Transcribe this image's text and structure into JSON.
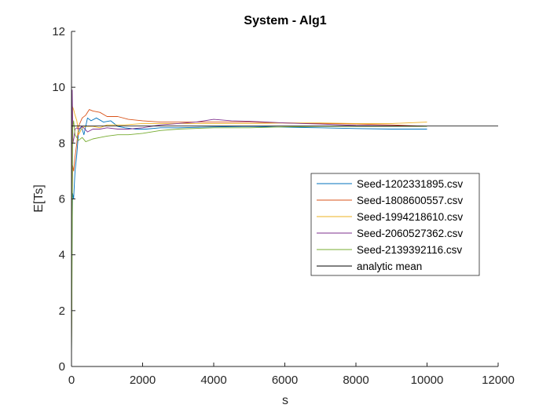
{
  "chart_data": {
    "type": "line",
    "title": "System - Alg1",
    "xlabel": "s",
    "ylabel": "E[Ts]",
    "xlim": [
      0,
      12000
    ],
    "ylim": [
      0,
      12
    ],
    "xticks": [
      0,
      2000,
      4000,
      6000,
      8000,
      10000,
      12000
    ],
    "yticks": [
      0,
      2,
      4,
      6,
      8,
      10,
      12
    ],
    "xtick_labels": [
      "0",
      "2000",
      "4000",
      "6000",
      "8000",
      "10000",
      "12000"
    ],
    "ytick_labels": [
      "0",
      "2",
      "4",
      "6",
      "8",
      "10",
      "12"
    ],
    "grid": false,
    "legend_position": "right",
    "series": [
      {
        "name": "Seed-1202331895.csv",
        "color": "#0072BD",
        "points": [
          [
            1,
            0.2
          ],
          [
            15,
            4.5
          ],
          [
            30,
            6.2
          ],
          [
            60,
            6.0
          ],
          [
            100,
            7.0
          ],
          [
            150,
            7.6
          ],
          [
            200,
            8.4
          ],
          [
            280,
            8.6
          ],
          [
            350,
            8.3
          ],
          [
            450,
            8.9
          ],
          [
            550,
            8.8
          ],
          [
            700,
            8.9
          ],
          [
            900,
            8.75
          ],
          [
            1100,
            8.8
          ],
          [
            1300,
            8.6
          ],
          [
            1500,
            8.55
          ],
          [
            1800,
            8.5
          ],
          [
            2100,
            8.5
          ],
          [
            2500,
            8.55
          ],
          [
            3000,
            8.55
          ],
          [
            4000,
            8.58
          ],
          [
            5000,
            8.6
          ],
          [
            6000,
            8.57
          ],
          [
            7000,
            8.55
          ],
          [
            8000,
            8.52
          ],
          [
            9000,
            8.5
          ],
          [
            10000,
            8.5
          ]
        ]
      },
      {
        "name": "Seed-1808600557.csv",
        "color": "#D95319",
        "points": [
          [
            1,
            0.3
          ],
          [
            15,
            5.5
          ],
          [
            30,
            7.2
          ],
          [
            60,
            7.0
          ],
          [
            100,
            7.5
          ],
          [
            150,
            8.0
          ],
          [
            200,
            8.6
          ],
          [
            300,
            8.9
          ],
          [
            400,
            9.0
          ],
          [
            500,
            9.2
          ],
          [
            600,
            9.15
          ],
          [
            800,
            9.1
          ],
          [
            1000,
            8.95
          ],
          [
            1300,
            8.95
          ],
          [
            1600,
            8.85
          ],
          [
            2000,
            8.8
          ],
          [
            2500,
            8.75
          ],
          [
            3000,
            8.75
          ],
          [
            4000,
            8.75
          ],
          [
            5000,
            8.75
          ],
          [
            6000,
            8.72
          ],
          [
            7000,
            8.7
          ],
          [
            8000,
            8.68
          ],
          [
            9000,
            8.65
          ],
          [
            10000,
            8.6
          ]
        ]
      },
      {
        "name": "Seed-1994218610.csv",
        "color": "#EDB120",
        "points": [
          [
            1,
            0.2
          ],
          [
            15,
            7.0
          ],
          [
            30,
            9.3
          ],
          [
            60,
            9.2
          ],
          [
            100,
            9.0
          ],
          [
            150,
            8.8
          ],
          [
            200,
            8.3
          ],
          [
            300,
            8.55
          ],
          [
            400,
            8.6
          ],
          [
            600,
            8.6
          ],
          [
            800,
            8.55
          ],
          [
            1000,
            8.65
          ],
          [
            1500,
            8.65
          ],
          [
            2000,
            8.7
          ],
          [
            3000,
            8.7
          ],
          [
            4000,
            8.7
          ],
          [
            5000,
            8.7
          ],
          [
            6000,
            8.72
          ],
          [
            7000,
            8.72
          ],
          [
            8000,
            8.7
          ],
          [
            9000,
            8.7
          ],
          [
            10000,
            8.75
          ]
        ]
      },
      {
        "name": "Seed-2060527362.csv",
        "color": "#7E2F8E",
        "points": [
          [
            1,
            0.2
          ],
          [
            10,
            9.8
          ],
          [
            20,
            9.9
          ],
          [
            40,
            8.0
          ],
          [
            70,
            8.2
          ],
          [
            100,
            8.5
          ],
          [
            150,
            8.55
          ],
          [
            200,
            8.5
          ],
          [
            300,
            8.6
          ],
          [
            450,
            8.4
          ],
          [
            600,
            8.5
          ],
          [
            800,
            8.5
          ],
          [
            1000,
            8.55
          ],
          [
            1300,
            8.5
          ],
          [
            1600,
            8.5
          ],
          [
            2000,
            8.55
          ],
          [
            2500,
            8.65
          ],
          [
            3000,
            8.7
          ],
          [
            3500,
            8.75
          ],
          [
            4000,
            8.85
          ],
          [
            4500,
            8.8
          ],
          [
            5000,
            8.78
          ],
          [
            5500,
            8.75
          ],
          [
            6000,
            8.72
          ],
          [
            7000,
            8.68
          ],
          [
            8000,
            8.63
          ],
          [
            9000,
            8.62
          ],
          [
            10000,
            8.6
          ]
        ]
      },
      {
        "name": "Seed-2139392116.csv",
        "color": "#77AC30",
        "points": [
          [
            1,
            0.2
          ],
          [
            15,
            3.5
          ],
          [
            30,
            8.5
          ],
          [
            60,
            8.8
          ],
          [
            100,
            8.3
          ],
          [
            150,
            8.2
          ],
          [
            200,
            8.1
          ],
          [
            300,
            8.2
          ],
          [
            400,
            8.05
          ],
          [
            600,
            8.15
          ],
          [
            800,
            8.2
          ],
          [
            1000,
            8.25
          ],
          [
            1300,
            8.3
          ],
          [
            1600,
            8.3
          ],
          [
            2000,
            8.35
          ],
          [
            2500,
            8.45
          ],
          [
            3000,
            8.5
          ],
          [
            4000,
            8.55
          ],
          [
            5000,
            8.55
          ],
          [
            6000,
            8.58
          ],
          [
            7000,
            8.6
          ],
          [
            8000,
            8.6
          ],
          [
            9000,
            8.6
          ],
          [
            10000,
            8.6
          ]
        ]
      },
      {
        "name": "analytic mean",
        "color": "#000000",
        "points": [
          [
            0,
            8.61
          ],
          [
            12000,
            8.61
          ]
        ]
      }
    ]
  }
}
